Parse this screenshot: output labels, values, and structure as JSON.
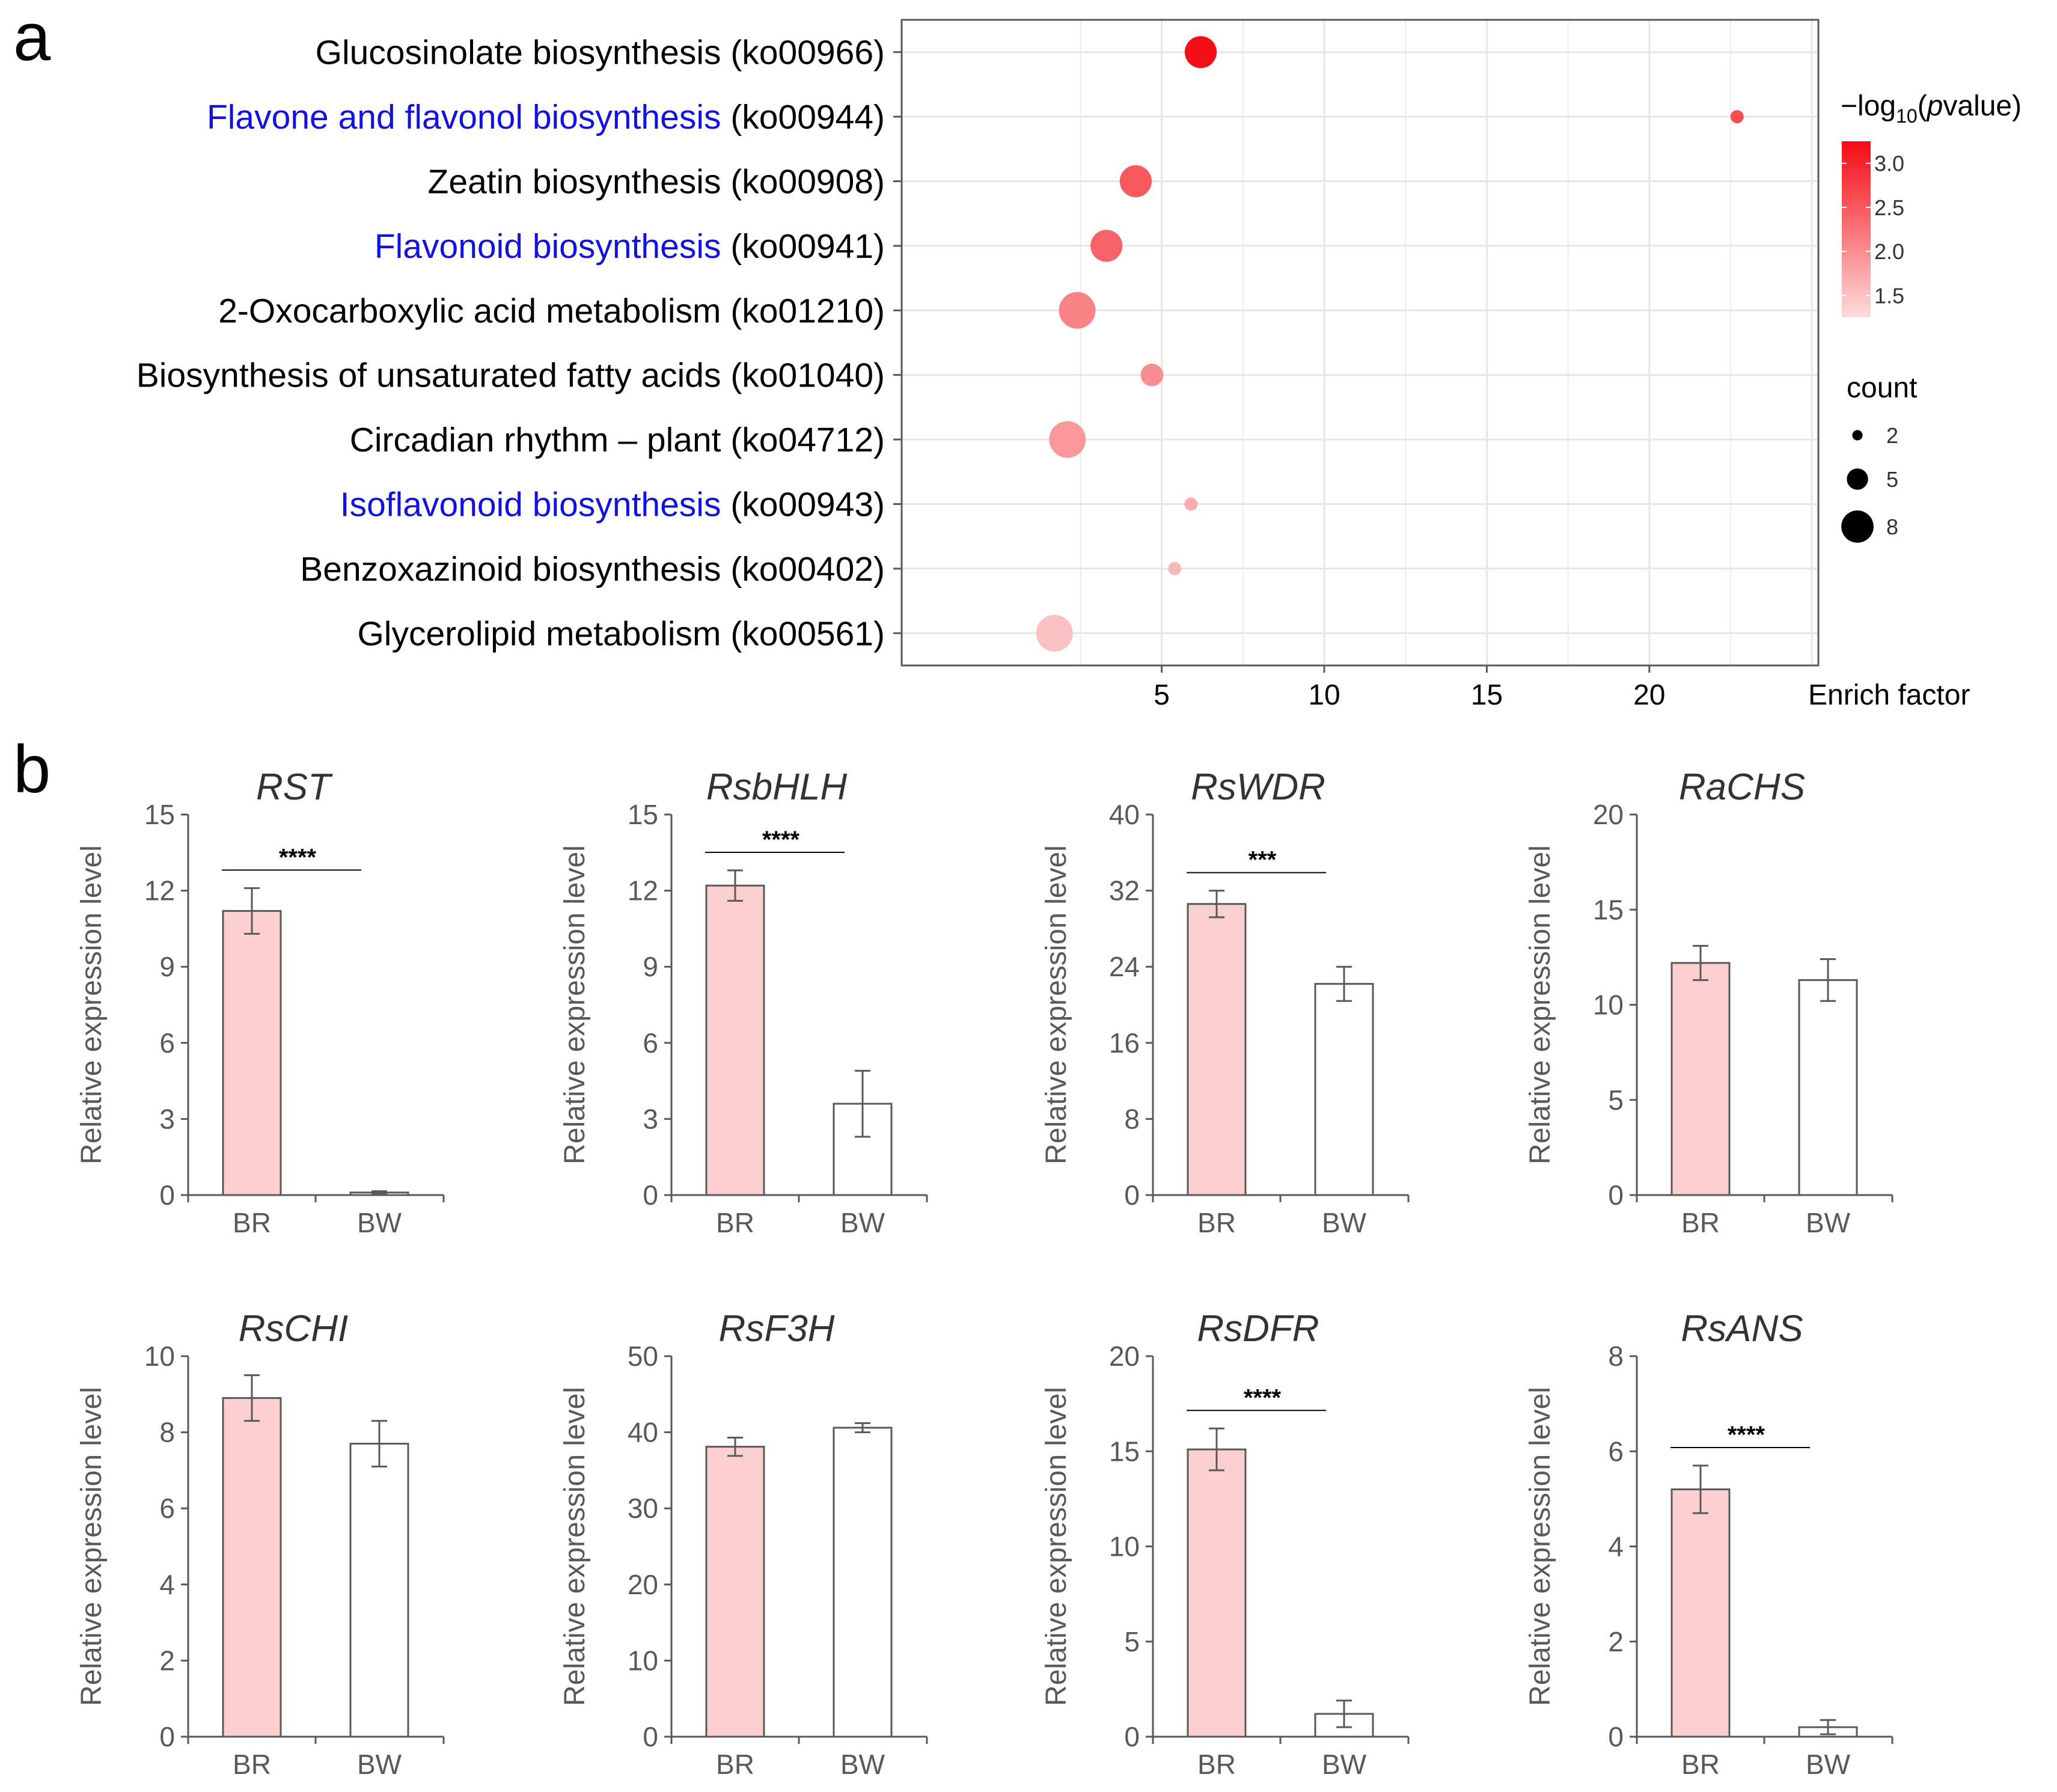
{
  "panel_a_label": "a",
  "panel_b_label": "b",
  "chart_data": [
    {
      "type": "scatter",
      "subtype": "kegg-bubble",
      "xlabel": "Enrich factor",
      "xlim": [
        -3.0,
        25.2
      ],
      "xticks": [
        5,
        10,
        15,
        20
      ],
      "grid": true,
      "color_legend_title": "−log10(pvalue)",
      "color_legend_title_parts": {
        "prefix": "−log",
        "sub": "10",
        "open": "(",
        "italic": "p",
        "suffix": "value)"
      },
      "color_legend_ticks": [
        "3.0",
        "2.5",
        "2.0",
        "1.5"
      ],
      "color_range": [
        1.25,
        3.25
      ],
      "color_low": "#fddcdc",
      "color_high": "#f50a14",
      "size_legend_title": "count",
      "size_legend": [
        2,
        5,
        8
      ],
      "pathways": [
        {
          "name": "Glucosinolate biosynthesis",
          "code": "(ko00966)",
          "highlight": false,
          "enrich_factor": 6.2,
          "count": 6,
          "neg_log10_p": 3.2
        },
        {
          "name": "Flavone and flavonol biosynthesis",
          "code": "(ko00944)",
          "highlight": true,
          "enrich_factor": 22.7,
          "count": 2,
          "neg_log10_p": 2.6
        },
        {
          "name": "Zeatin biosynthesis",
          "code": "(ko00908)",
          "highlight": false,
          "enrich_factor": 4.2,
          "count": 6,
          "neg_log10_p": 2.5
        },
        {
          "name": "Flavonoid biosynthesis",
          "code": "(ko00941)",
          "highlight": true,
          "enrich_factor": 3.3,
          "count": 6,
          "neg_log10_p": 2.4
        },
        {
          "name": "2-Oxocarboxylic acid metabolism",
          "code": "(ko01210)",
          "highlight": false,
          "enrich_factor": 2.4,
          "count": 7,
          "neg_log10_p": 2.1
        },
        {
          "name": "Biosynthesis of unsaturated fatty acids",
          "code": "(ko01040)",
          "highlight": false,
          "enrich_factor": 4.7,
          "count": 4,
          "neg_log10_p": 2.0
        },
        {
          "name": "Circadian rhythm – plant",
          "code": "(ko04712)",
          "highlight": false,
          "enrich_factor": 2.1,
          "count": 7,
          "neg_log10_p": 1.9
        },
        {
          "name": "Isoflavonoid biosynthesis",
          "code": "(ko00943)",
          "highlight": true,
          "enrich_factor": 5.9,
          "count": 2,
          "neg_log10_p": 1.7
        },
        {
          "name": "Benzoxazinoid biosynthesis",
          "code": "(ko00402)",
          "highlight": false,
          "enrich_factor": 5.4,
          "count": 2,
          "neg_log10_p": 1.6
        },
        {
          "name": "Glycerolipid metabolism",
          "code": "(ko00561)",
          "highlight": false,
          "enrich_factor": 1.7,
          "count": 7,
          "neg_log10_p": 1.5
        }
      ]
    },
    {
      "type": "bar",
      "panel": "b",
      "ylabel": "Relative expression level",
      "categories": [
        "BR",
        "BW"
      ],
      "bar_colors": [
        "#fccfcf",
        "#ffffff"
      ],
      "charts": [
        {
          "gene": "RST",
          "ylim": [
            0,
            15
          ],
          "yticks": [
            0,
            3,
            6,
            9,
            12,
            15
          ],
          "values": [
            11.2,
            0.1
          ],
          "errors": [
            0.9,
            0.05
          ],
          "significance": "****"
        },
        {
          "gene": "RsbHLH",
          "ylim": [
            0,
            15
          ],
          "yticks": [
            0,
            3,
            6,
            9,
            12,
            15
          ],
          "values": [
            12.2,
            3.6
          ],
          "errors": [
            0.6,
            1.3
          ],
          "significance": "****"
        },
        {
          "gene": "RsWDR",
          "ylim": [
            0,
            40
          ],
          "yticks": [
            0,
            8,
            16,
            24,
            32,
            40
          ],
          "values": [
            30.6,
            22.2
          ],
          "errors": [
            1.4,
            1.8
          ],
          "significance": "***"
        },
        {
          "gene": "RaCHS",
          "ylim": [
            0,
            20
          ],
          "yticks": [
            0,
            5,
            10,
            15,
            20
          ],
          "values": [
            12.2,
            11.3
          ],
          "errors": [
            0.9,
            1.1
          ],
          "significance": ""
        },
        {
          "gene": "RsCHI",
          "ylim": [
            0,
            10
          ],
          "yticks": [
            0,
            2,
            4,
            6,
            8,
            10
          ],
          "values": [
            8.9,
            7.7
          ],
          "errors": [
            0.6,
            0.6
          ],
          "significance": ""
        },
        {
          "gene": "RsF3H",
          "ylim": [
            0,
            50
          ],
          "yticks": [
            0,
            10,
            20,
            30,
            40,
            50
          ],
          "values": [
            38.1,
            40.6
          ],
          "errors": [
            1.2,
            0.6
          ],
          "significance": ""
        },
        {
          "gene": "RsDFR",
          "ylim": [
            0,
            20
          ],
          "yticks": [
            0,
            5,
            10,
            15,
            20
          ],
          "values": [
            15.1,
            1.2
          ],
          "errors": [
            1.1,
            0.7
          ],
          "significance": "****"
        },
        {
          "gene": "RsANS",
          "ylim": [
            0,
            8
          ],
          "yticks": [
            0,
            2,
            4,
            6,
            8
          ],
          "values": [
            5.2,
            0.2
          ],
          "errors": [
            0.5,
            0.15
          ],
          "significance": "****"
        }
      ]
    }
  ]
}
